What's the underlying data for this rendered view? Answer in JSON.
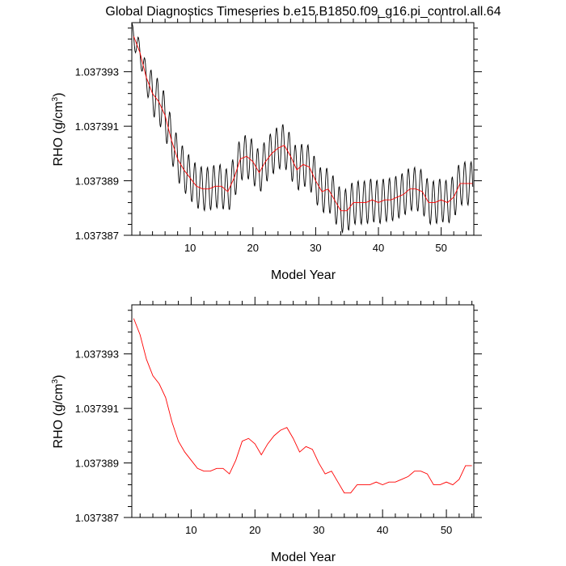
{
  "chart_data": [
    {
      "type": "line",
      "title": "Global Diagnostics Timeseries b.e15.B1850.f09_g16.pi_control.all.64",
      "xlabel": "Model Year",
      "ylabel_base": "RHO (g/cm",
      "ylabel_sup": "3",
      "ylabel_close": ")",
      "xlim": [
        0.7,
        55.2
      ],
      "ylim": [
        1.037387,
        1.0373948
      ],
      "x_ticks": [
        10,
        20,
        30,
        40,
        50
      ],
      "x_tick_labels": [
        "10",
        "20",
        "30",
        "40",
        "50"
      ],
      "y_ticks": [
        1.037387,
        1.037389,
        1.037391,
        1.037393
      ],
      "y_tick_labels": [
        "1.037387",
        "1.037389",
        "1.037391",
        "1.037393"
      ],
      "grid": false,
      "series": [
        {
          "color": "#000000",
          "x_start": 0.7,
          "x_step": 0.083333,
          "annual_x": [
            1,
            2,
            3,
            4,
            5,
            6,
            7,
            8,
            9,
            10,
            11,
            12,
            13,
            14,
            15,
            16,
            17,
            18,
            19,
            20,
            21,
            22,
            23,
            24,
            25,
            26,
            27,
            28,
            29,
            30,
            31,
            32,
            33,
            34,
            35,
            36,
            37,
            38,
            39,
            40,
            41,
            42,
            43,
            44,
            45,
            46,
            47,
            48,
            49,
            50,
            51,
            52,
            53,
            54,
            55
          ],
          "annual_mean": [
            1.0373943,
            1.0373937,
            1.0373928,
            1.0373922,
            1.0373919,
            1.0373914,
            1.0373905,
            1.0373898,
            1.0373894,
            1.0373891,
            1.0373888,
            1.0373887,
            1.0373887,
            1.0373888,
            1.0373888,
            1.0373886,
            1.0373891,
            1.0373898,
            1.0373899,
            1.0373897,
            1.0373893,
            1.0373897,
            1.03739,
            1.0373902,
            1.0373903,
            1.0373899,
            1.0373894,
            1.0373896,
            1.0373895,
            1.037389,
            1.0373886,
            1.0373887,
            1.0373883,
            1.0373879,
            1.0373879,
            1.0373882,
            1.0373882,
            1.0373882,
            1.0373883,
            1.0373882,
            1.0373883,
            1.0373883,
            1.0373884,
            1.0373885,
            1.0373887,
            1.0373887,
            1.0373886,
            1.0373882,
            1.0373882,
            1.0373883,
            1.0373882,
            1.0373884,
            1.0373889,
            1.0373889,
            1.0373889
          ],
          "seasonal_amplitude": [
            4.5e-07,
            4e-07,
            5e-07,
            8e-07,
            8e-07,
            8e-07,
            8e-07,
            8e-07,
            8e-07,
            8e-07,
            8e-07,
            8e-07,
            8e-07,
            8e-07,
            8e-07,
            8e-07,
            8e-07,
            8e-07,
            8e-07,
            8e-07,
            8e-07,
            8e-07,
            8e-07,
            8e-07,
            8e-07,
            8e-07,
            8e-07,
            8e-07,
            8e-07,
            8e-07,
            8e-07,
            8e-07,
            8e-07,
            8e-07,
            8e-07,
            8e-07,
            8e-07,
            8e-07,
            8e-07,
            8e-07,
            8e-07,
            8e-07,
            8e-07,
            8e-07,
            8e-07,
            8e-07,
            8e-07,
            8e-07,
            8e-07,
            8e-07,
            8e-07,
            8e-07,
            8e-07,
            8e-07,
            8e-07
          ]
        },
        {
          "color": "#ff0000",
          "x": [
            1,
            2,
            3,
            4,
            5,
            6,
            7,
            8,
            9,
            10,
            11,
            12,
            13,
            14,
            15,
            16,
            17,
            18,
            19,
            20,
            21,
            22,
            23,
            24,
            25,
            26,
            27,
            28,
            29,
            30,
            31,
            32,
            33,
            34,
            35,
            36,
            37,
            38,
            39,
            40,
            41,
            42,
            43,
            44,
            45,
            46,
            47,
            48,
            49,
            50,
            51,
            52,
            53,
            54,
            55
          ],
          "y": [
            1.0373943,
            1.0373937,
            1.0373928,
            1.0373922,
            1.0373919,
            1.0373914,
            1.0373905,
            1.0373898,
            1.0373894,
            1.0373891,
            1.0373888,
            1.0373887,
            1.0373887,
            1.0373888,
            1.0373888,
            1.0373886,
            1.0373891,
            1.0373898,
            1.0373899,
            1.0373897,
            1.0373893,
            1.0373897,
            1.03739,
            1.0373902,
            1.0373903,
            1.0373899,
            1.0373894,
            1.0373896,
            1.0373895,
            1.037389,
            1.0373886,
            1.0373887,
            1.0373883,
            1.0373879,
            1.0373879,
            1.0373882,
            1.0373882,
            1.0373882,
            1.0373883,
            1.0373882,
            1.0373883,
            1.0373883,
            1.0373884,
            1.0373885,
            1.0373887,
            1.0373887,
            1.0373886,
            1.0373882,
            1.0373882,
            1.0373883,
            1.0373882,
            1.0373884,
            1.0373889,
            1.0373889,
            1.0373889
          ]
        }
      ]
    },
    {
      "type": "line",
      "title": "",
      "xlabel": "Model Year",
      "ylabel_base": "RHO (g/cm",
      "ylabel_sup": "3",
      "ylabel_close": ")",
      "xlim": [
        0.7,
        54.3
      ],
      "ylim": [
        1.037387,
        1.0373948
      ],
      "x_ticks": [
        10,
        20,
        30,
        40,
        50
      ],
      "x_tick_labels": [
        "10",
        "20",
        "30",
        "40",
        "50"
      ],
      "y_ticks": [
        1.037387,
        1.037389,
        1.037391,
        1.037393
      ],
      "y_tick_labels": [
        "1.037387",
        "1.037389",
        "1.037391",
        "1.037393"
      ],
      "grid": false,
      "series": [
        {
          "color": "#ff0000",
          "x": [
            1,
            2,
            3,
            4,
            5,
            6,
            7,
            8,
            9,
            10,
            11,
            12,
            13,
            14,
            15,
            16,
            17,
            18,
            19,
            20,
            21,
            22,
            23,
            24,
            25,
            26,
            27,
            28,
            29,
            30,
            31,
            32,
            33,
            34,
            35,
            36,
            37,
            38,
            39,
            40,
            41,
            42,
            43,
            44,
            45,
            46,
            47,
            48,
            49,
            50,
            51,
            52,
            53,
            54
          ],
          "y": [
            1.0373943,
            1.0373937,
            1.0373928,
            1.0373922,
            1.0373919,
            1.0373914,
            1.0373905,
            1.0373898,
            1.0373894,
            1.0373891,
            1.0373888,
            1.0373887,
            1.0373887,
            1.0373888,
            1.0373888,
            1.0373886,
            1.0373891,
            1.0373898,
            1.0373899,
            1.0373897,
            1.0373893,
            1.0373897,
            1.03739,
            1.0373902,
            1.0373903,
            1.0373899,
            1.0373894,
            1.0373896,
            1.0373895,
            1.037389,
            1.0373886,
            1.0373887,
            1.0373883,
            1.0373879,
            1.0373879,
            1.0373882,
            1.0373882,
            1.0373882,
            1.0373883,
            1.0373882,
            1.0373883,
            1.0373883,
            1.0373884,
            1.0373885,
            1.0373887,
            1.0373887,
            1.0373886,
            1.0373882,
            1.0373882,
            1.0373883,
            1.0373882,
            1.0373884,
            1.0373889,
            1.0373889
          ]
        }
      ]
    }
  ]
}
